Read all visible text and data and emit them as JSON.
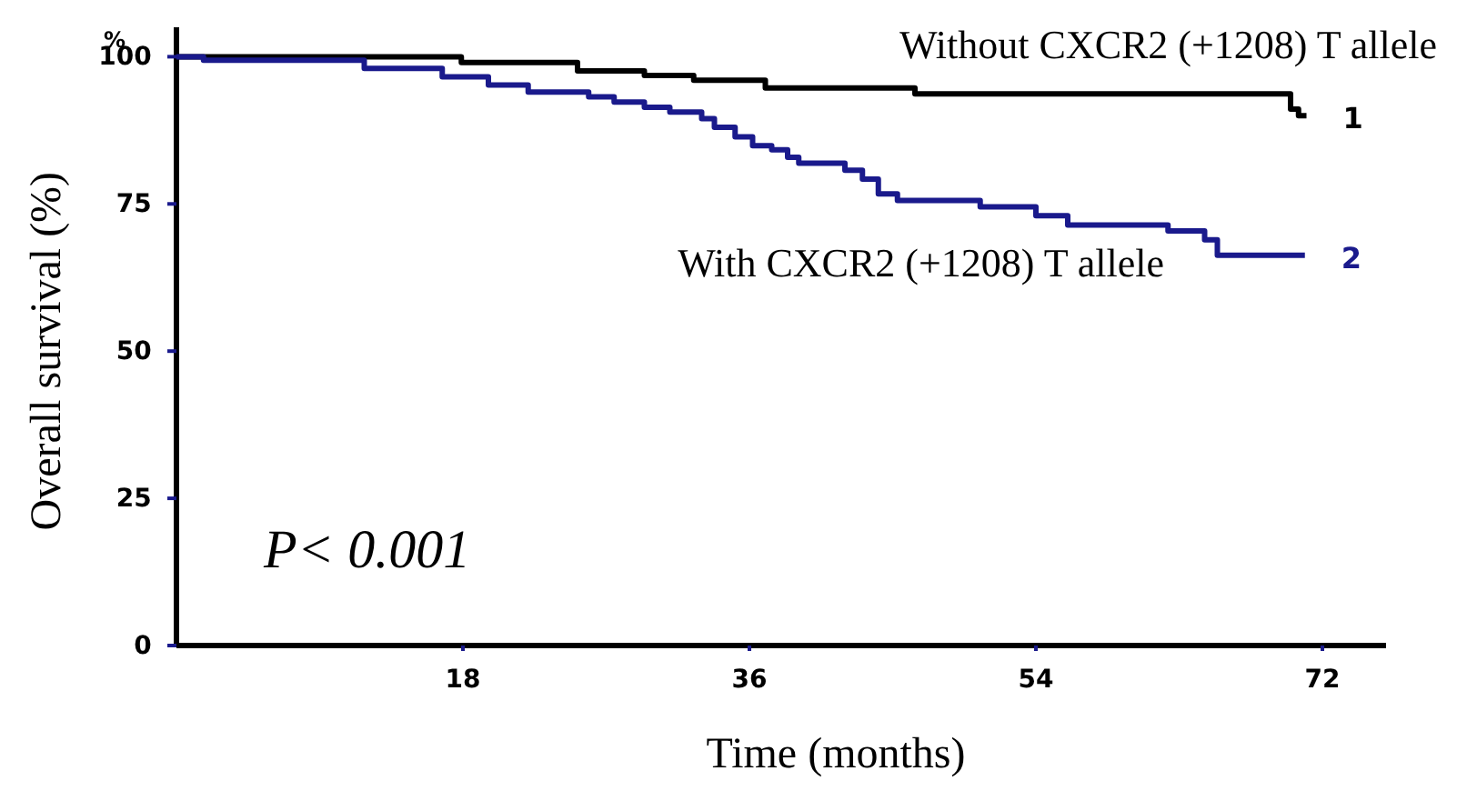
{
  "chart_data": {
    "type": "step",
    "xlabel": "Time (months)",
    "ylabel": "Overall survival (%)",
    "xlim": [
      0,
      76
    ],
    "ylim": [
      0,
      105
    ],
    "xticks": [
      18,
      36,
      54,
      72
    ],
    "yticks": [
      0,
      25,
      50,
      75,
      100
    ],
    "grid": false,
    "legend": false,
    "line_style": "solid",
    "series": [
      {
        "name": "1",
        "color": "#000000",
        "x": [
          0,
          17.9,
          25.2,
          29.4,
          32.5,
          37,
          46.4,
          70,
          70.5,
          71
        ],
        "values": [
          100,
          99,
          97.6,
          96.8,
          96,
          94.7,
          93.7,
          91.1,
          90,
          90
        ]
      },
      {
        "name": "2",
        "color": "#1a1a8c",
        "x": [
          0,
          1.7,
          11.8,
          16.7,
          19.6,
          22.1,
          25.9,
          27.5,
          29.4,
          31,
          33,
          33.8,
          35.1,
          36.2,
          37.4,
          38.4,
          39.1,
          42,
          43.1,
          44.1,
          45.3,
          50.5,
          54,
          56,
          62.3,
          64.6,
          65.4,
          70.9
        ],
        "values": [
          100,
          99.4,
          98,
          96.6,
          95.2,
          94,
          93.2,
          92.3,
          91.4,
          90.6,
          89.5,
          88,
          86.4,
          84.9,
          84.2,
          82.9,
          81.9,
          80.7,
          79.2,
          76.7,
          75.6,
          74.5,
          73,
          71.4,
          70.4,
          68.9,
          66.3,
          66.3
        ]
      }
    ],
    "annotations": [
      "%",
      "Without CXCR2 (+1208) T allele",
      "With CXCR2 (+1208) T allele",
      "P< 0.001"
    ]
  }
}
